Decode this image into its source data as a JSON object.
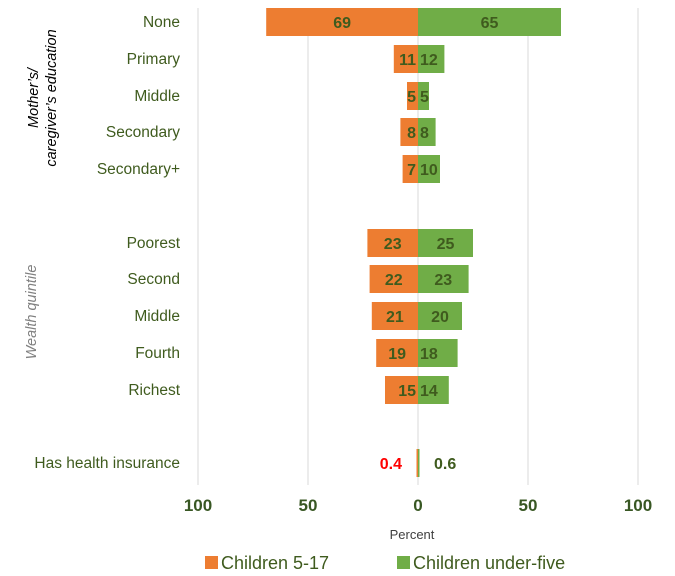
{
  "chart_data": {
    "type": "bar",
    "orientation": "horizontal",
    "layout": "butterfly",
    "groups": [
      {
        "label": "Mother’s/ caregiver’s education",
        "categories": [
          "None",
          "Primary",
          "Middle",
          "Secondary",
          "Secondary+"
        ]
      },
      {
        "label": "Wealth quintile",
        "categories": [
          "Poorest",
          "Second",
          "Middle",
          "Fourth",
          "Richest"
        ]
      },
      {
        "label": "",
        "categories": [
          "Has health insurance"
        ]
      }
    ],
    "series": [
      {
        "name": "Children 5-17",
        "side": "left",
        "color": "#ED7D31",
        "values": [
          69,
          11,
          5,
          8,
          7,
          23,
          22,
          21,
          19,
          15,
          0.4
        ],
        "labels": [
          "69",
          "11",
          "5",
          "8",
          "7",
          "23",
          "22",
          "21",
          "19",
          "15",
          "0.4"
        ]
      },
      {
        "name": "Children under-five",
        "side": "right",
        "color": "#70AD47",
        "values": [
          65,
          12,
          5,
          8,
          10,
          25,
          23,
          20,
          18,
          14,
          0.6
        ],
        "labels": [
          "65",
          "12",
          "5",
          "8",
          "10",
          "25",
          "23",
          "20",
          "18",
          "14",
          "0.6"
        ]
      }
    ],
    "xlabel": "Percent",
    "xlim": [
      -100,
      100
    ],
    "xticks": [
      "100",
      "50",
      "0",
      "50",
      "100"
    ],
    "gridlines": true,
    "legend_position": "bottom",
    "colors": {
      "category_text": "#3F5B1E",
      "group_label_education": "#000000",
      "group_label_wealth": "#808080",
      "tick_text": "#385723",
      "value_text": "#3F5B1E",
      "highlight_value": "#FF0000",
      "grid": "#D9D9D9"
    }
  }
}
